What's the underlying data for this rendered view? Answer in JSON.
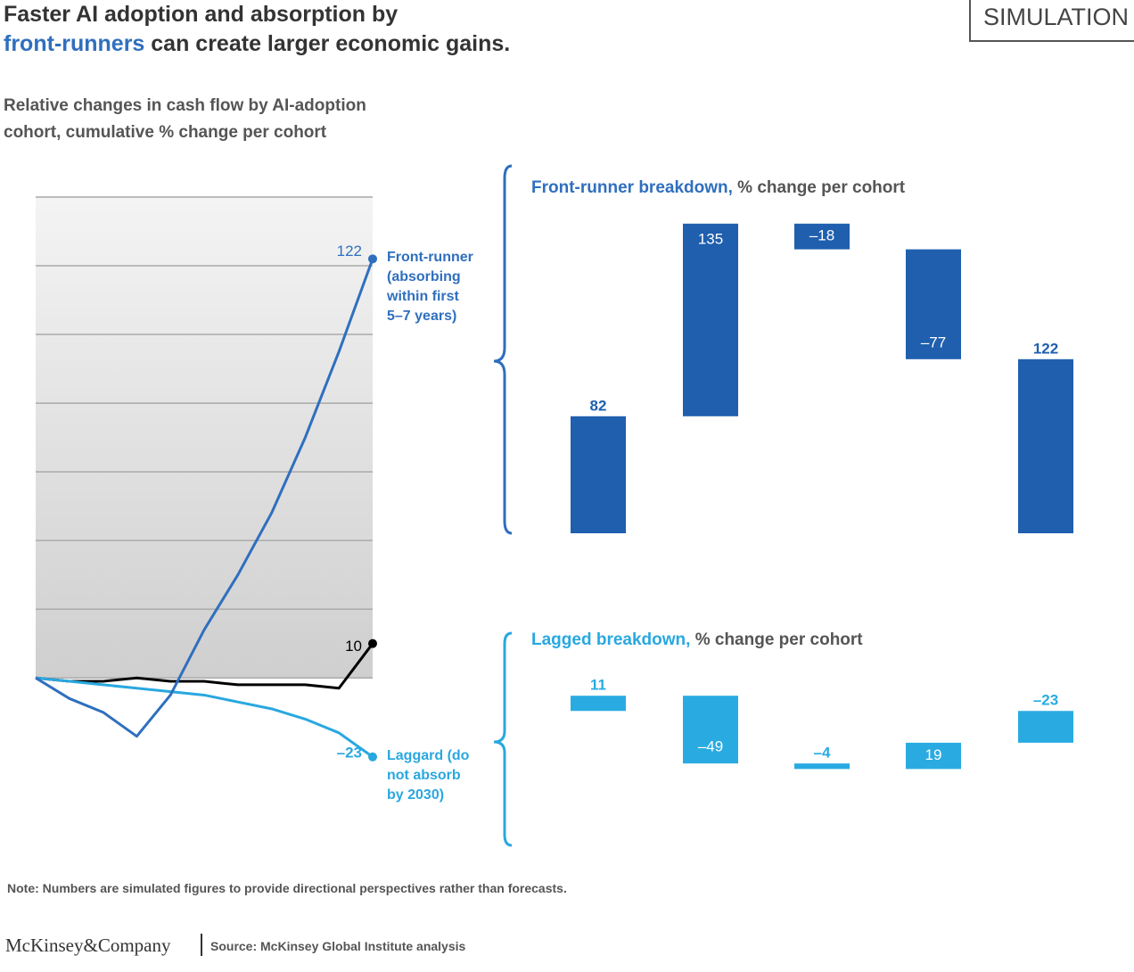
{
  "header": {
    "title_line1": "Faster AI adoption and absorption by",
    "title_highlight": "front-runners",
    "title_rest": " can create larger economic gains.",
    "badge": "SIMULATION",
    "subtitle": "Relative changes in cash flow by AI-adoption cohort, cumulative % change per cohort"
  },
  "chart_data": [
    {
      "type": "line",
      "ylim": [
        -35,
        140
      ],
      "yticks": [
        0,
        20,
        40,
        60,
        80,
        100,
        120,
        140
      ],
      "grid": true,
      "series": [
        {
          "color": "#000000",
          "values": [
            0,
            -1,
            -1,
            0,
            -1,
            -1,
            -2,
            -2,
            -2,
            -3,
            10
          ],
          "end_label": "10"
        },
        {
          "name": "Laggard (do not absorb by 2030)",
          "color": "#29a8e0",
          "values": [
            0,
            -1,
            -2,
            -3,
            -4,
            -5,
            -7,
            -9,
            -12,
            -16,
            -23
          ],
          "end_label": "–23"
        },
        {
          "name": "Front-runner (absorbing within first 5–7 years)",
          "color": "#2f6fbe",
          "values": [
            0,
            -6,
            -10,
            -17,
            -5,
            14,
            30,
            48,
            70,
            95,
            122
          ],
          "end_label": "122"
        }
      ]
    },
    {
      "type": "waterfall",
      "title": "Front-runner breakdown,",
      "title_rest": " % change per cohort",
      "color": "#1f5fae",
      "ylim": [
        0,
        230
      ],
      "values": [
        82,
        135,
        -18,
        -77,
        122
      ],
      "value_labels": [
        "82",
        "135",
        "–18",
        "–77",
        "122"
      ],
      "measures": [
        "relative",
        "relative",
        "relative",
        "relative",
        "total"
      ]
    },
    {
      "type": "waterfall",
      "title": "Lagged breakdown,",
      "title_rest": " % change per cohort",
      "color": "#29abe2",
      "ylim": [
        -45,
        15
      ],
      "values": [
        11,
        -49,
        -4,
        19,
        -23
      ],
      "value_labels": [
        "11",
        "–49",
        "–4",
        "19",
        "–23"
      ],
      "measures": [
        "relative",
        "relative",
        "relative",
        "relative",
        "total"
      ]
    }
  ],
  "footer": {
    "note": "Note: Numbers are simulated figures to provide directional perspectives rather than forecasts.",
    "logo": "McKinsey&Company",
    "source": "Source: McKinsey Global Institute analysis"
  }
}
